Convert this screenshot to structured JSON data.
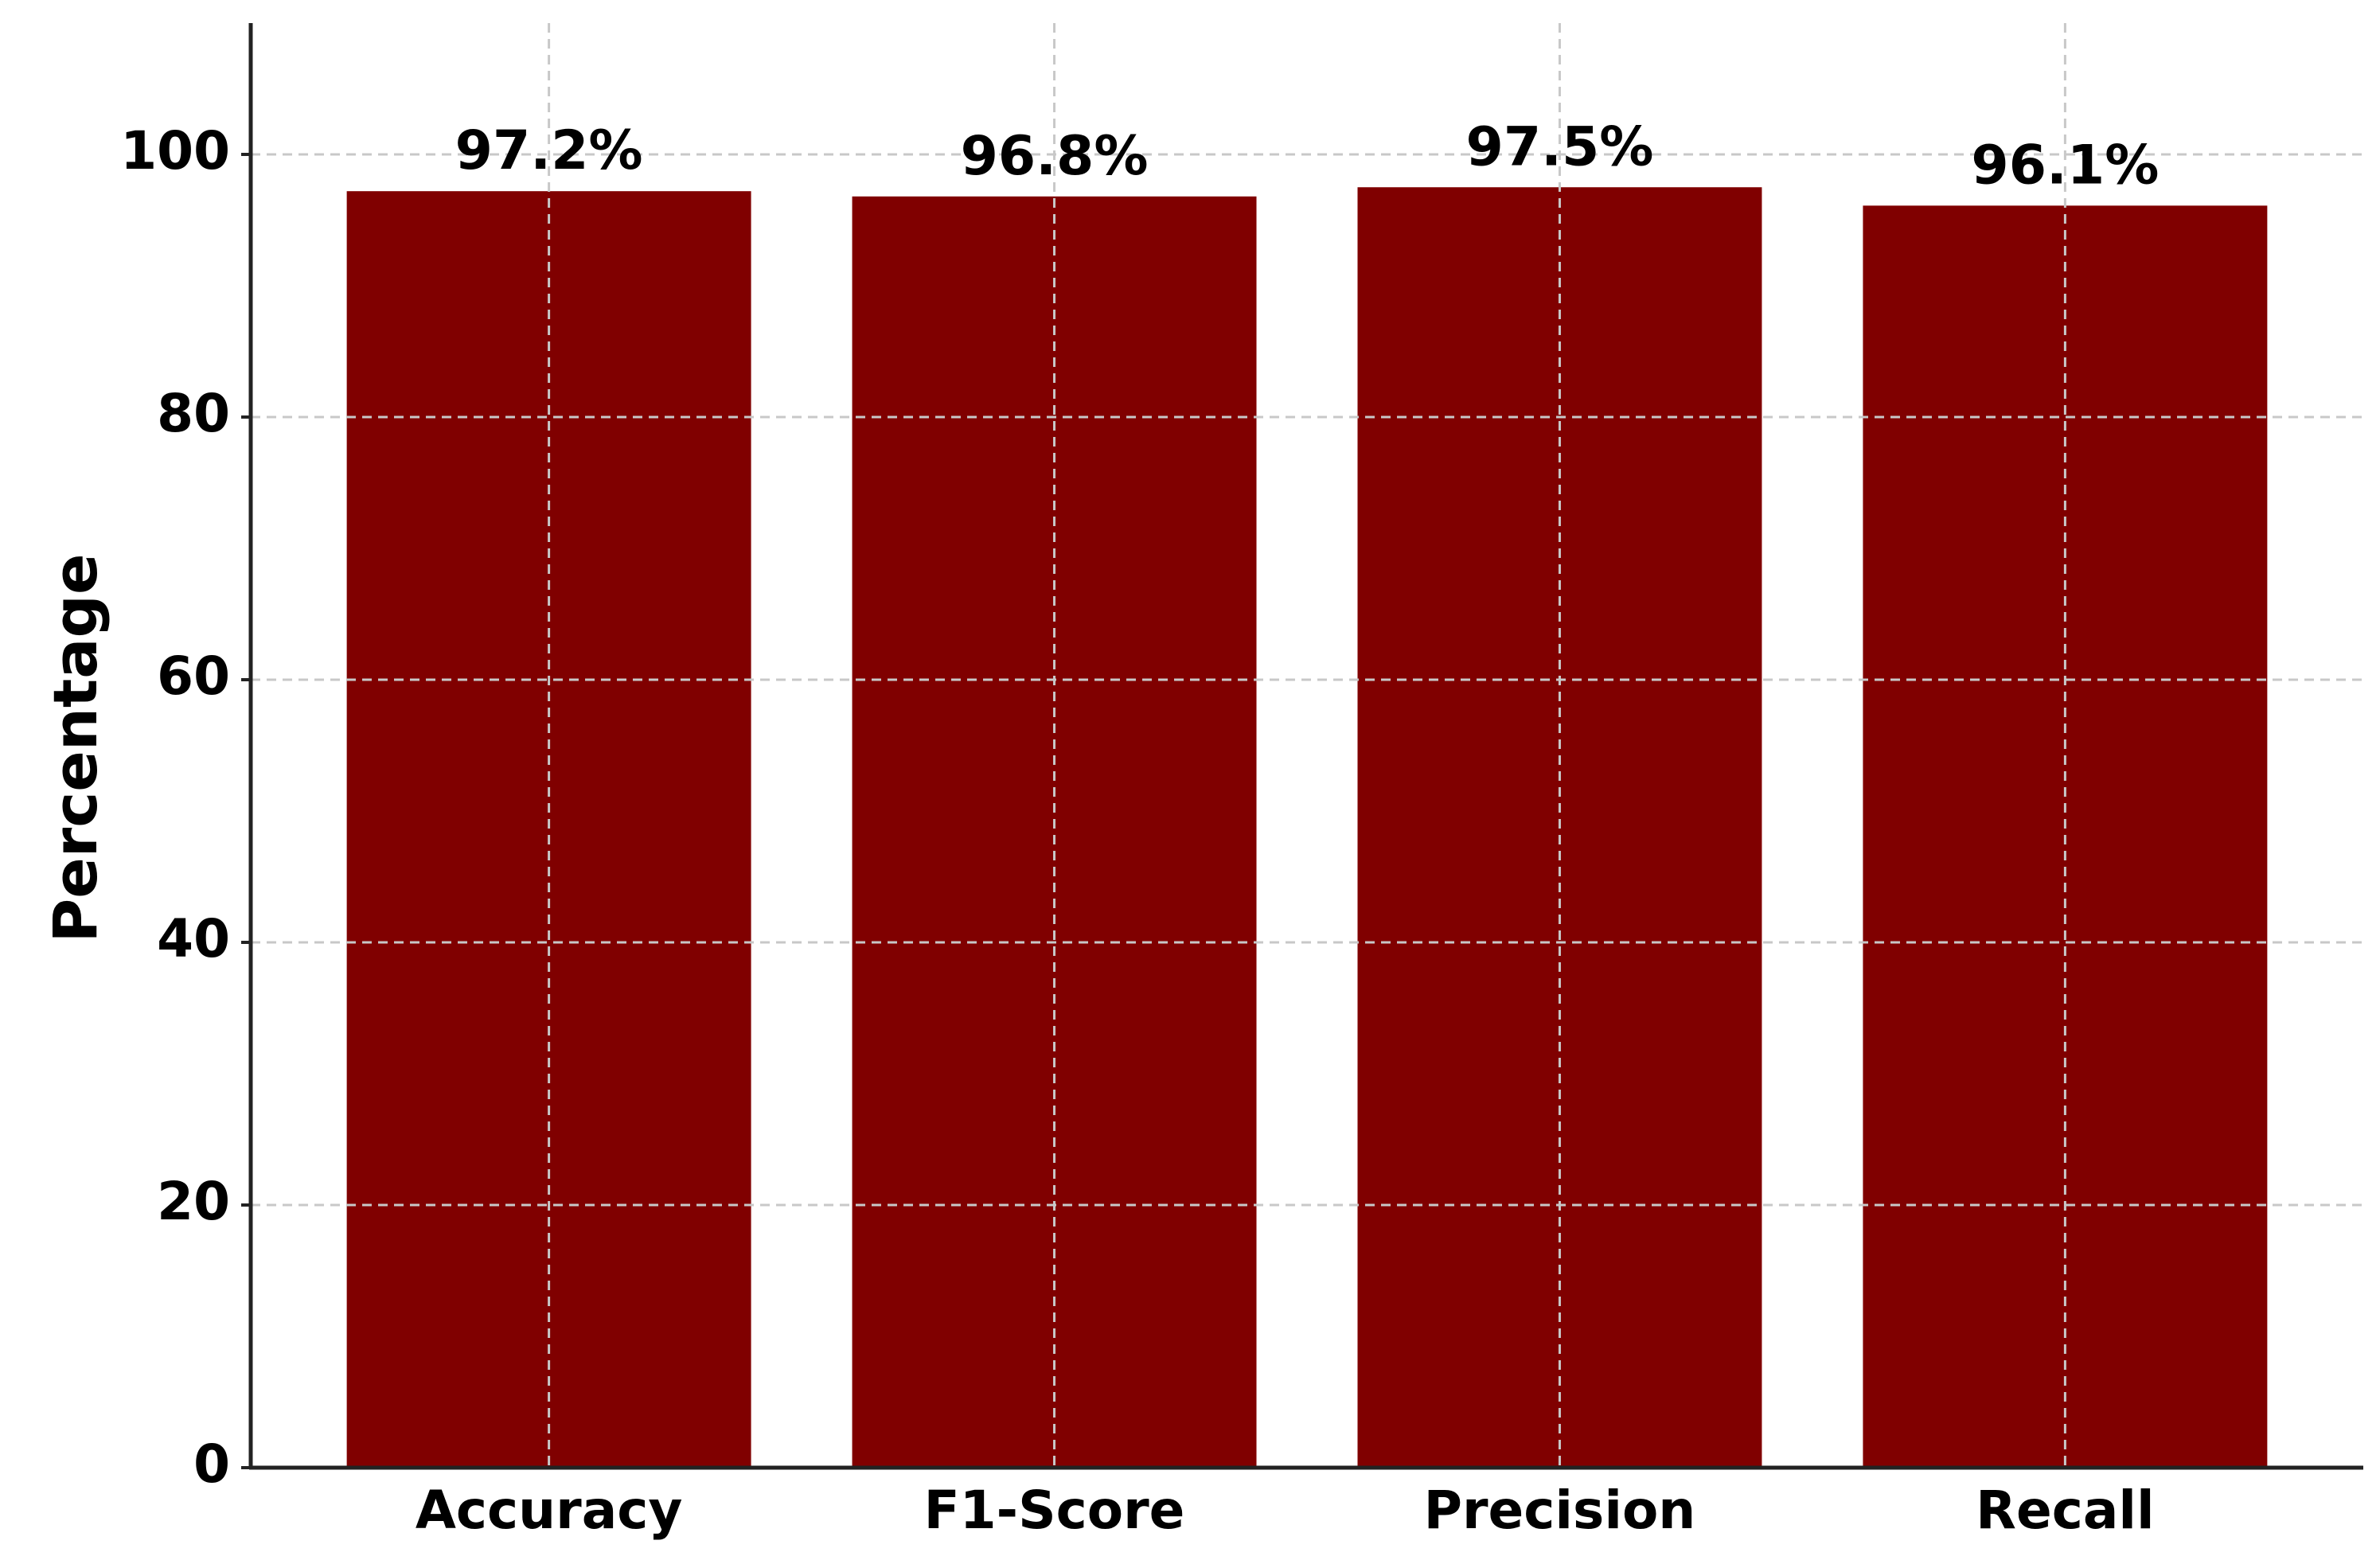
{
  "chart_data": {
    "type": "bar",
    "y_label": "Percentage",
    "categories": [
      "Accuracy",
      "F1-Score",
      "Precision",
      "Recall"
    ],
    "values": [
      97.2,
      96.8,
      97.5,
      96.1
    ],
    "value_labels": [
      "97.2%",
      "96.8%",
      "97.5%",
      "96.1%"
    ],
    "color": "#800000",
    "ylim": [
      0,
      110
    ],
    "yticks": [
      0,
      20,
      40,
      60,
      80,
      100
    ],
    "grid": true
  }
}
